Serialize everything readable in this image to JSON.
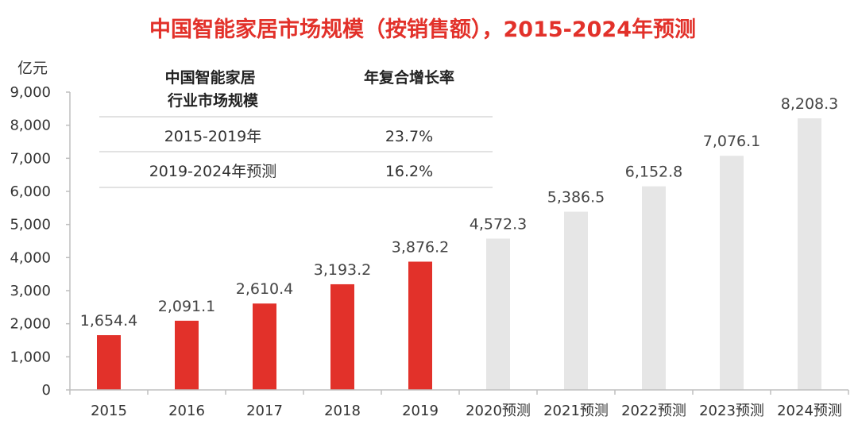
{
  "chart_data": {
    "type": "bar",
    "title": "中国智能家居市场规模（按销售额），2015-2024年预测",
    "unit_label": "亿元",
    "categories": [
      "2015",
      "2016",
      "2017",
      "2018",
      "2019",
      "2020预测",
      "2021预测",
      "2022预测",
      "2023预测",
      "2024预测"
    ],
    "values": [
      1654.4,
      2091.1,
      2610.4,
      3193.2,
      3876.2,
      4572.3,
      5386.5,
      6152.8,
      7076.1,
      8208.3
    ],
    "value_labels": [
      "1,654.4",
      "2,091.1",
      "2,610.4",
      "3,193.2",
      "3,876.2",
      "4,572.3",
      "5,386.5",
      "6,152.8",
      "7,076.1",
      "8,208.3"
    ],
    "is_forecast": [
      false,
      false,
      false,
      false,
      false,
      true,
      true,
      true,
      true,
      true
    ],
    "ylim": [
      0,
      9000
    ],
    "yticks": [
      "0",
      "1,000",
      "2,000",
      "3,000",
      "4,000",
      "5,000",
      "6,000",
      "7,000",
      "8,000",
      "9,000"
    ],
    "colors": {
      "actual": "#e2312a",
      "forecast": "#e6e6e6",
      "title": "#e2312a"
    },
    "grid": false,
    "legend": "none",
    "inset_table": {
      "headers": [
        "中国智能家居\n行业市场规模",
        "年复合增长率"
      ],
      "rows": [
        [
          "2015-2019年",
          "23.7%"
        ],
        [
          "2019-2024年预测",
          "16.2%"
        ]
      ]
    }
  }
}
